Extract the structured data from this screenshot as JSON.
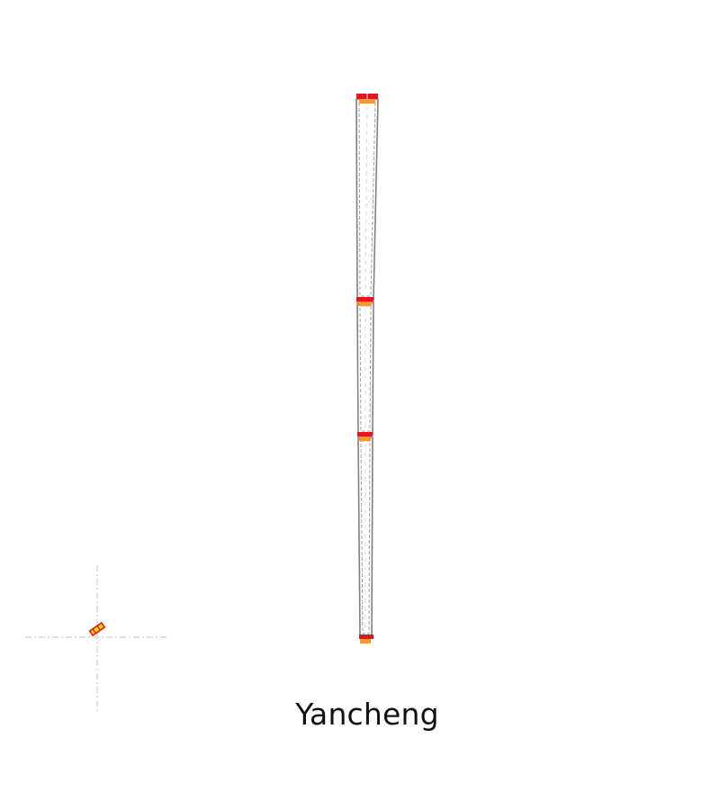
{
  "map": {
    "city_name": "Yancheng",
    "colors": {
      "background": "#ffffff",
      "road_outline": "#808080",
      "road_fill": "#ffffff",
      "road_centerline": "#d8d8d8",
      "junction_red": "#e8141b",
      "junction_orange": "#f39a2f",
      "junction_yellow": "#ffe100",
      "crosshair": "#cfcfcf"
    },
    "icons": [
      "junction-marker",
      "ego-vehicle-marker",
      "crosshair-guide"
    ]
  }
}
